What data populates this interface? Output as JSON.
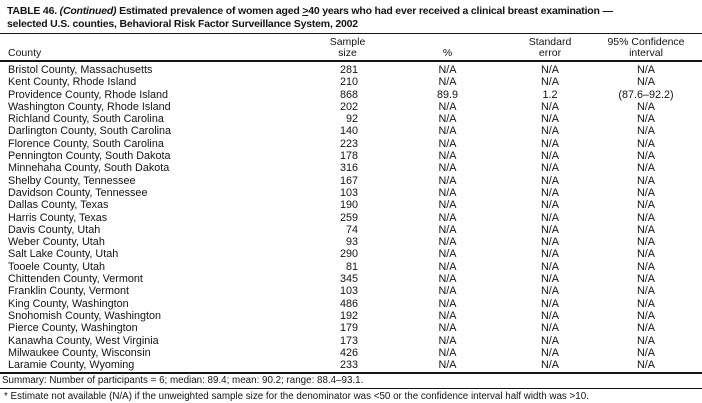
{
  "title": {
    "table_label": "TABLE 46. ",
    "continued": "(Continued)",
    "segment_after_continued": " Estimated prevalence of women aged ",
    "geq_symbol": ">",
    "segment_after_symbol": "40 years who had ever received a clinical breast examination —",
    "line2": "selected U.S. counties, Behavioral Risk Factor Surveillance System, 2002"
  },
  "columns": {
    "county": "County",
    "sample_size_line1": "Sample",
    "sample_size_line2": "size",
    "percent": "%",
    "standard_error_line1": "Standard",
    "standard_error_line2": "error",
    "confidence_line1": "95% Confidence",
    "confidence_line2": "interval"
  },
  "rows": [
    {
      "county": "Bristol County, Massachusetts",
      "sample_size": "281",
      "percent": "N/A",
      "std_error": "N/A",
      "ci": "N/A"
    },
    {
      "county": "Kent County, Rhode Island",
      "sample_size": "210",
      "percent": "N/A",
      "std_error": "N/A",
      "ci": "N/A"
    },
    {
      "county": "Providence County, Rhode Island",
      "sample_size": "868",
      "percent": "89.9",
      "std_error": "1.2",
      "ci": "(87.6–92.2)"
    },
    {
      "county": "Washington County, Rhode Island",
      "sample_size": "202",
      "percent": "N/A",
      "std_error": "N/A",
      "ci": "N/A"
    },
    {
      "county": "Richland County, South Carolina",
      "sample_size": "92",
      "percent": "N/A",
      "std_error": "N/A",
      "ci": "N/A"
    },
    {
      "county": "Darlington County, South Carolina",
      "sample_size": "140",
      "percent": "N/A",
      "std_error": "N/A",
      "ci": "N/A"
    },
    {
      "county": "Florence County, South Carolina",
      "sample_size": "223",
      "percent": "N/A",
      "std_error": "N/A",
      "ci": "N/A"
    },
    {
      "county": "Pennington County, South Dakota",
      "sample_size": "178",
      "percent": "N/A",
      "std_error": "N/A",
      "ci": "N/A"
    },
    {
      "county": "Minnehaha County, South Dakota",
      "sample_size": "316",
      "percent": "N/A",
      "std_error": "N/A",
      "ci": "N/A"
    },
    {
      "county": "Shelby County, Tennessee",
      "sample_size": "167",
      "percent": "N/A",
      "std_error": "N/A",
      "ci": "N/A"
    },
    {
      "county": "Davidson County, Tennessee",
      "sample_size": "103",
      "percent": "N/A",
      "std_error": "N/A",
      "ci": "N/A"
    },
    {
      "county": "Dallas County, Texas",
      "sample_size": "190",
      "percent": "N/A",
      "std_error": "N/A",
      "ci": "N/A"
    },
    {
      "county": "Harris County, Texas",
      "sample_size": "259",
      "percent": "N/A",
      "std_error": "N/A",
      "ci": "N/A"
    },
    {
      "county": "Davis County, Utah",
      "sample_size": "74",
      "percent": "N/A",
      "std_error": "N/A",
      "ci": "N/A"
    },
    {
      "county": "Weber County, Utah",
      "sample_size": "93",
      "percent": "N/A",
      "std_error": "N/A",
      "ci": "N/A"
    },
    {
      "county": "Salt Lake County, Utah",
      "sample_size": "290",
      "percent": "N/A",
      "std_error": "N/A",
      "ci": "N/A"
    },
    {
      "county": "Tooele County, Utah",
      "sample_size": "81",
      "percent": "N/A",
      "std_error": "N/A",
      "ci": "N/A"
    },
    {
      "county": "Chittenden County, Vermont",
      "sample_size": "345",
      "percent": "N/A",
      "std_error": "N/A",
      "ci": "N/A"
    },
    {
      "county": "Franklin County, Vermont",
      "sample_size": "103",
      "percent": "N/A",
      "std_error": "N/A",
      "ci": "N/A"
    },
    {
      "county": "King County, Washington",
      "sample_size": "486",
      "percent": "N/A",
      "std_error": "N/A",
      "ci": "N/A"
    },
    {
      "county": "Snohomish County, Washington",
      "sample_size": "192",
      "percent": "N/A",
      "std_error": "N/A",
      "ci": "N/A"
    },
    {
      "county": "Pierce County, Washington",
      "sample_size": "179",
      "percent": "N/A",
      "std_error": "N/A",
      "ci": "N/A"
    },
    {
      "county": "Kanawha County, West Virginia",
      "sample_size": "173",
      "percent": "N/A",
      "std_error": "N/A",
      "ci": "N/A"
    },
    {
      "county": "Milwaukee County, Wisconsin",
      "sample_size": "426",
      "percent": "N/A",
      "std_error": "N/A",
      "ci": "N/A"
    },
    {
      "county": "Laramie County, Wyoming",
      "sample_size": "233",
      "percent": "N/A",
      "std_error": "N/A",
      "ci": "N/A"
    }
  ],
  "summary": "Summary: Number of participants = 6; median: 89.4; mean: 90.2; range: 88.4–93.1.",
  "footnote": "* Estimate not available (N/A) if the unweighted sample size for the denominator was <50 or the confidence interval half width was >10."
}
